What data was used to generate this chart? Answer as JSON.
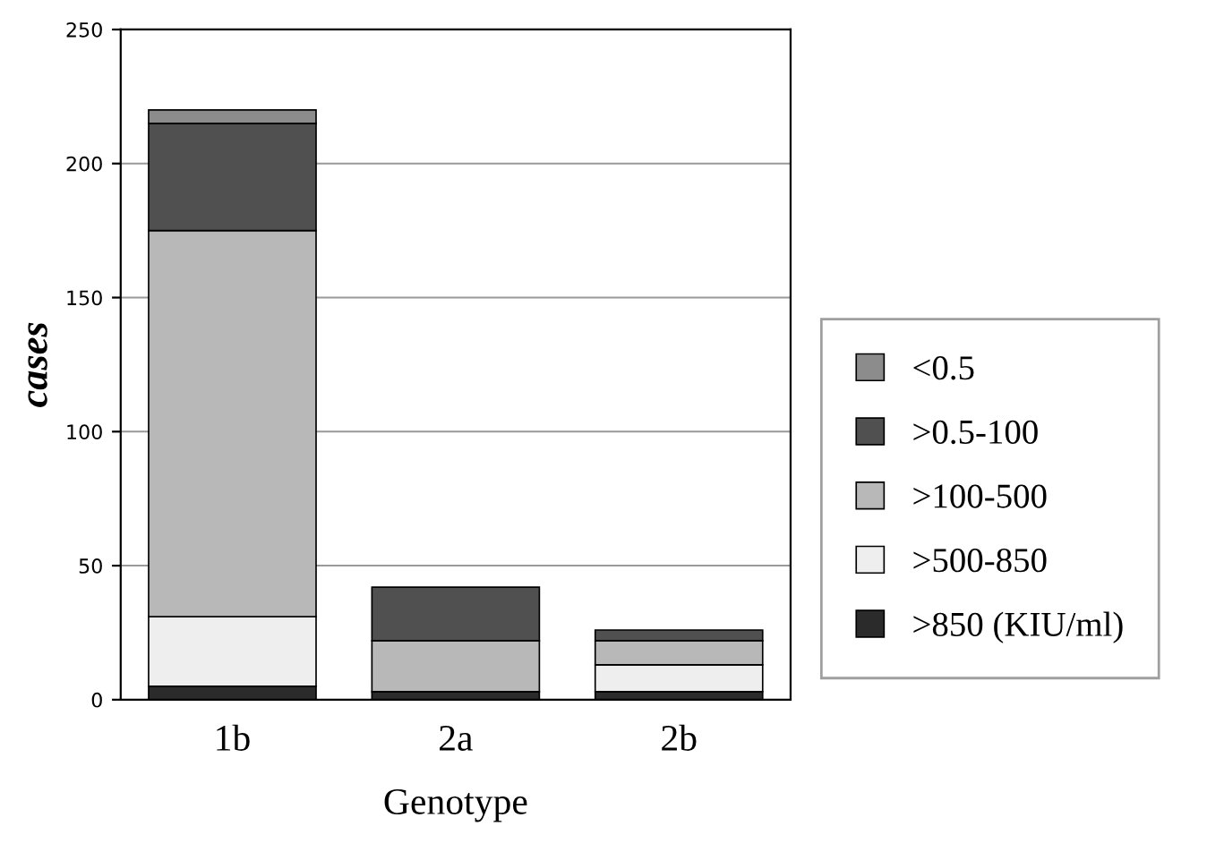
{
  "chart_data": {
    "type": "bar",
    "stacked": true,
    "xlabel": "Genotype",
    "ylabel": "cases",
    "categories": [
      "1b",
      "2a",
      "2b"
    ],
    "series": [
      {
        "name": ">850 (KIU/ml)",
        "color": "#2b2b2b",
        "values": [
          5,
          3,
          3
        ]
      },
      {
        "name": ">500-850",
        "color": "#eeeeee",
        "values": [
          26,
          null,
          10
        ]
      },
      {
        "name": ">100-500",
        "color": "#b8b8b8",
        "values": [
          144,
          19,
          9
        ]
      },
      {
        "name": ">0.5-100",
        "color": "#505050",
        "values": [
          40,
          20,
          4
        ]
      },
      {
        "name": "<0.5",
        "color": "#8c8c8c",
        "values": [
          5,
          null,
          null
        ]
      }
    ],
    "ylim": [
      0,
      250
    ],
    "yticks": [
      0,
      50,
      100,
      150,
      200,
      250
    ],
    "grid": "y",
    "legend": "right"
  }
}
